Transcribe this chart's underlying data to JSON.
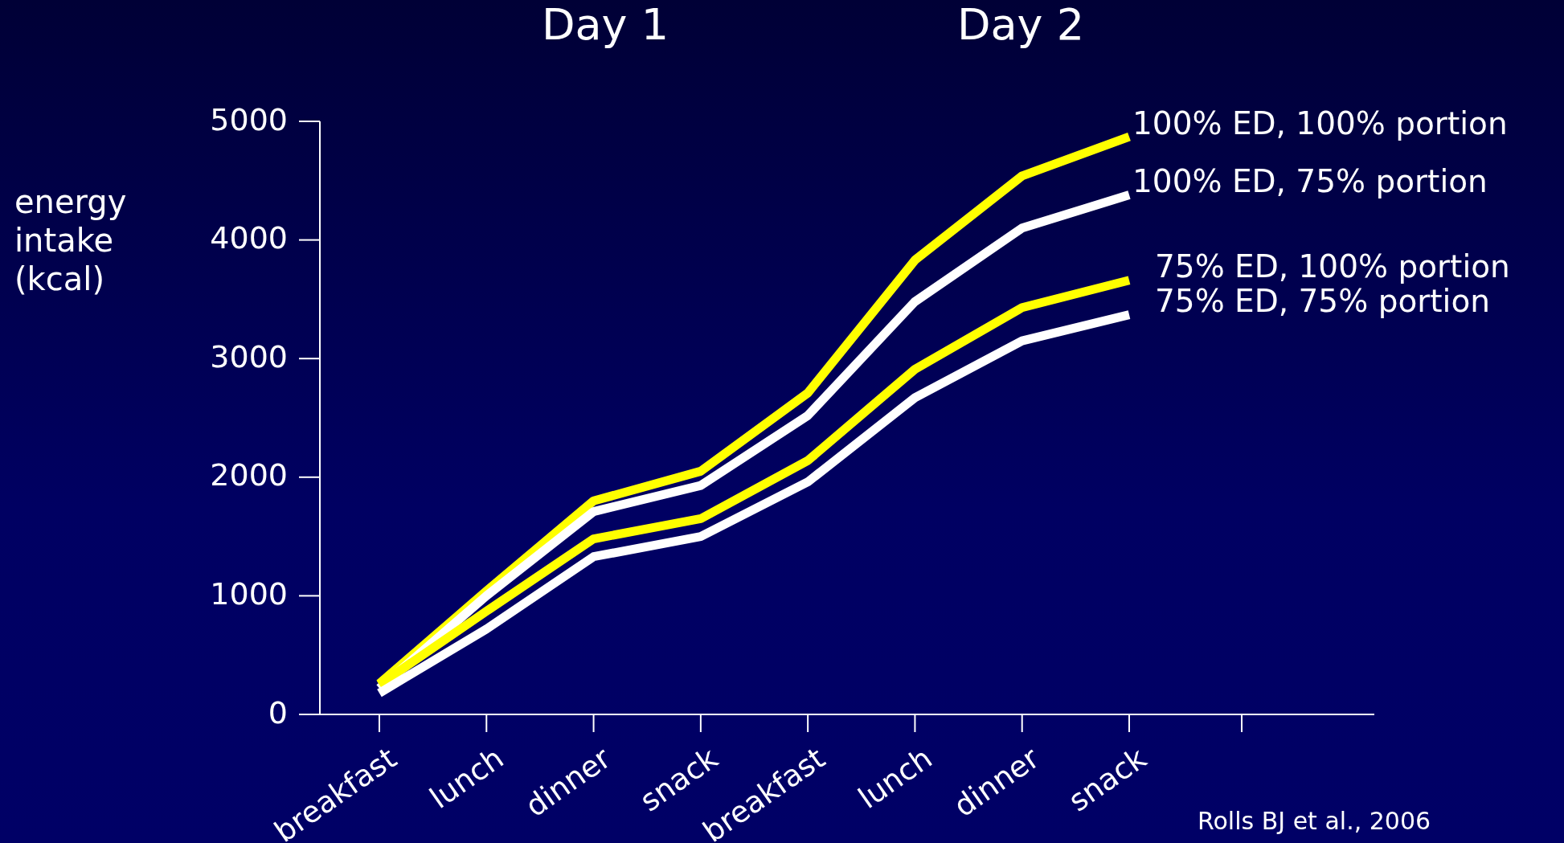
{
  "chart_data": {
    "type": "line",
    "title": "Day 1",
    "subtitle": "Day 2",
    "ylabel": "energy intake (kcal)",
    "categories": [
      "breakfast",
      "lunch",
      "dinner",
      "snack",
      "breakfast",
      "lunch",
      "dinner",
      "snack"
    ],
    "series": [
      {
        "name": "100% ED, 100% portion",
        "color": "#ffff00",
        "values": [
          260,
          1040,
          1800,
          2050,
          2710,
          3830,
          4540,
          4870
        ]
      },
      {
        "name": "100% ED, 75% portion",
        "color": "#ffffff",
        "values": [
          220,
          1000,
          1710,
          1930,
          2520,
          3480,
          4100,
          4380
        ]
      },
      {
        "name": "75% ED, 100% portion",
        "color": "#ffff00",
        "values": [
          250,
          870,
          1480,
          1650,
          2140,
          2910,
          3430,
          3660
        ]
      },
      {
        "name": "75% ED, 75% portion",
        "color": "#ffffff",
        "values": [
          180,
          720,
          1330,
          1500,
          1960,
          2670,
          3150,
          3370
        ]
      }
    ],
    "ylim": [
      0,
      5000
    ],
    "yticks": [
      0,
      1000,
      2000,
      3000,
      4000,
      5000
    ],
    "grid": false,
    "legend": false,
    "marker": "none",
    "line_style": "solid",
    "annotations": [
      "Rolls BJ et al., 2006"
    ]
  }
}
